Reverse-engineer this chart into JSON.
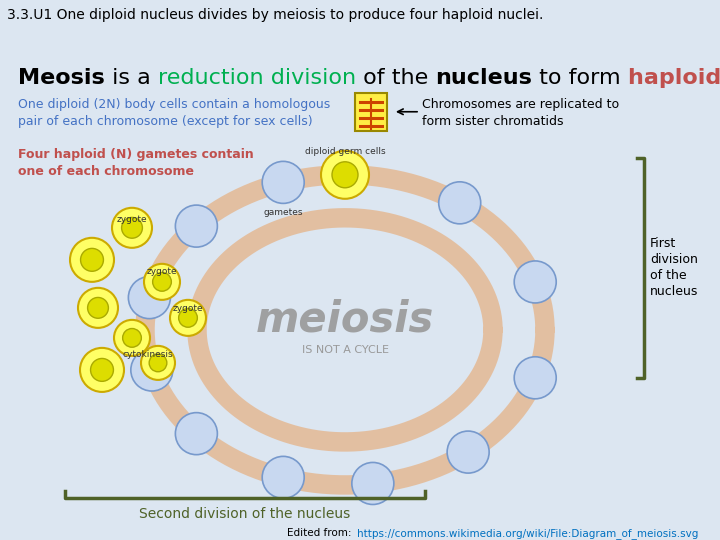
{
  "header_bg": "#b8cce4",
  "header_text": "3.3.U1 One diploid nucleus divides by meiosis to produce four haploid nuclei.",
  "header_text_color": "#000000",
  "header_fontsize": 10,
  "body_bg": "#dce6f1",
  "title_parts": [
    {
      "text": "Meosis",
      "color": "#000000",
      "bold": true
    },
    {
      "text": " is a ",
      "color": "#000000",
      "bold": false
    },
    {
      "text": "reduction division",
      "color": "#00b050",
      "bold": false
    },
    {
      "text": " of the ",
      "color": "#000000",
      "bold": false
    },
    {
      "text": "nucleus",
      "color": "#000000",
      "bold": true
    },
    {
      "text": " to form ",
      "color": "#000000",
      "bold": false
    },
    {
      "text": "haploid gametes",
      "color": "#c0504d",
      "bold": true
    }
  ],
  "title_fontsize": 16,
  "annotation1_text": "One diploid (2N) body cells contain a homologous\npair of each chromosome (except for sex cells)",
  "annotation1_color": "#4472c4",
  "annotation1_fontsize": 9,
  "annotation2_text": "Chromosomes are replicated to\nform sister chromatids",
  "annotation2_color": "#000000",
  "annotation2_fontsize": 9,
  "annotation3_text": "Four haploid (N) gametes contain\none of each chromosome",
  "annotation3_color": "#c0504d",
  "annotation3_fontsize": 9,
  "bracket_right_color": "#4f6228",
  "bracket_bottom_color": "#4f6228",
  "first_division_text": "First\ndivision\nof the\nnucleus",
  "first_division_color": "#000000",
  "first_division_fontsize": 9,
  "second_division_text": "Second division of the nucleus",
  "second_division_color": "#4f6228",
  "second_division_fontsize": 10,
  "meiosis_text": "meiosis",
  "meiosis_color": "#999999",
  "meiosis_fontsize": 30,
  "meiosis_sub_text": "IS NOT A CYCLE",
  "meiosis_sub_color": "#999999",
  "meiosis_sub_fontsize": 8,
  "footer_text": "Edited from: ",
  "footer_link": "https://commons.wikimedia.org/wiki/File:Diagram_of_meiosis.svg",
  "footer_color": "#000000",
  "footer_link_color": "#0070c0",
  "footer_fontsize": 7.5
}
